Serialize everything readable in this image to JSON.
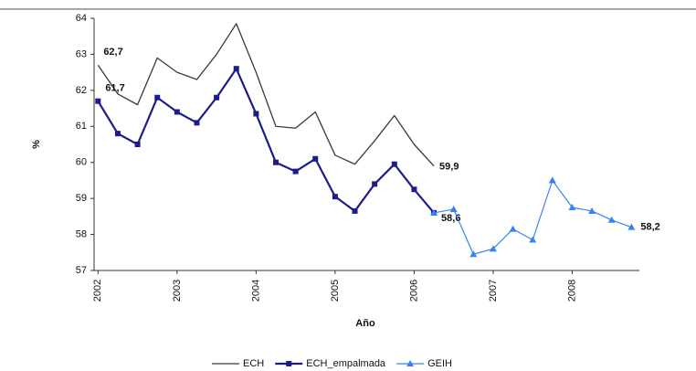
{
  "chart_data": {
    "type": "line",
    "y_label": "%",
    "x_label": "Año",
    "xlim": [
      2001.95,
      2008.85
    ],
    "xticks": [
      2002,
      2003,
      2004,
      2005,
      2006,
      2007,
      2008
    ],
    "ylim": [
      57,
      64
    ],
    "yticks": [
      57,
      58,
      59,
      60,
      61,
      62,
      63,
      64
    ],
    "grid": false,
    "legend": "bottom",
    "series": [
      {
        "name": "ECH",
        "color": "#3a3a3a",
        "marker": "none",
        "x": [
          2002,
          2002.25,
          2002.5,
          2002.75,
          2003,
          2003.25,
          2003.5,
          2003.75,
          2004,
          2004.25,
          2004.5,
          2004.75,
          2005,
          2005.25,
          2005.5,
          2005.75,
          2006,
          2006.25
        ],
        "values": [
          62.7,
          61.9,
          61.6,
          62.9,
          62.5,
          62.3,
          63.0,
          63.85,
          62.5,
          61.0,
          60.95,
          61.4,
          60.2,
          59.95,
          60.6,
          61.3,
          60.5,
          59.9
        ],
        "value_labels": [
          "62,7",
          null,
          null,
          null,
          null,
          null,
          null,
          null,
          null,
          null,
          null,
          null,
          null,
          null,
          null,
          null,
          null,
          "59,9"
        ]
      },
      {
        "name": "ECH_empalmada",
        "color": "#1c1c8a",
        "marker": "square",
        "x": [
          2002,
          2002.25,
          2002.5,
          2002.75,
          2003,
          2003.25,
          2003.5,
          2003.75,
          2004,
          2004.25,
          2004.5,
          2004.75,
          2005,
          2005.25,
          2005.5,
          2005.75,
          2006,
          2006.25
        ],
        "values": [
          61.7,
          60.8,
          60.5,
          61.8,
          61.4,
          61.1,
          61.8,
          62.6,
          61.35,
          60.0,
          59.75,
          60.1,
          59.05,
          58.65,
          59.4,
          59.95,
          59.25,
          58.6
        ],
        "value_labels": [
          "61,7",
          null,
          null,
          null,
          null,
          null,
          null,
          null,
          null,
          null,
          null,
          null,
          null,
          null,
          null,
          null,
          null,
          "58,6"
        ]
      },
      {
        "name": "GEIH",
        "color": "#3b82f0",
        "marker": "triangle",
        "x": [
          2006.25,
          2006.5,
          2006.75,
          2007,
          2007.25,
          2007.5,
          2007.75,
          2008,
          2008.25,
          2008.5,
          2008.75
        ],
        "values": [
          58.6,
          58.7,
          57.45,
          57.6,
          58.15,
          57.85,
          59.5,
          58.75,
          58.65,
          58.4,
          58.2
        ],
        "value_labels": [
          null,
          null,
          null,
          null,
          null,
          null,
          null,
          null,
          null,
          null,
          "58,2"
        ]
      }
    ]
  }
}
